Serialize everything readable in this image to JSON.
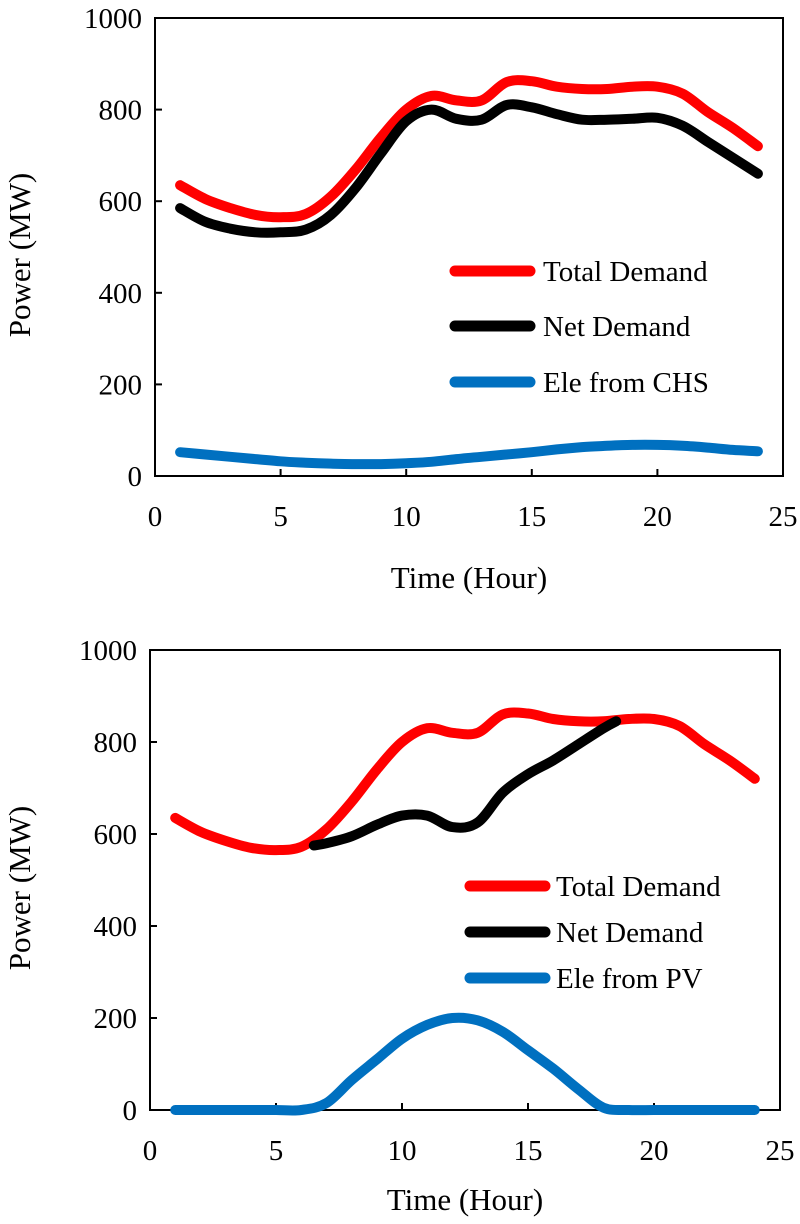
{
  "chart_data": [
    {
      "type": "line",
      "title": "",
      "xlabel": "Time (Hour)",
      "ylabel": "Power (MW)",
      "xlim": [
        0,
        25
      ],
      "ylim": [
        0,
        1000
      ],
      "xticks": [
        "0",
        "5",
        "10",
        "15",
        "20",
        "25"
      ],
      "yticks": [
        "0",
        "200",
        "400",
        "600",
        "800",
        "1000"
      ],
      "grid": false,
      "legend_position": "right",
      "series": [
        {
          "name": "Total Demand",
          "color": "#ff0000",
          "x": [
            1,
            2,
            3,
            4,
            5,
            6,
            7,
            8,
            9,
            10,
            11,
            12,
            13,
            14,
            15,
            16,
            17,
            18,
            19,
            20,
            21,
            22,
            23,
            24
          ],
          "y": [
            635,
            605,
            585,
            570,
            565,
            572,
            610,
            670,
            740,
            800,
            830,
            820,
            820,
            860,
            862,
            850,
            845,
            845,
            850,
            850,
            835,
            795,
            760,
            720
          ]
        },
        {
          "name": "Net Demand",
          "color": "#000000",
          "x": [
            1,
            2,
            3,
            4,
            5,
            6,
            7,
            8,
            9,
            10,
            11,
            12,
            13,
            14,
            15,
            16,
            17,
            18,
            19,
            20,
            21,
            22,
            23,
            24
          ],
          "y": [
            585,
            555,
            540,
            532,
            532,
            538,
            570,
            630,
            705,
            775,
            800,
            780,
            778,
            810,
            805,
            790,
            778,
            778,
            780,
            782,
            765,
            730,
            695,
            660
          ]
        },
        {
          "name": "Ele from CHS",
          "color": "#0070c0",
          "x": [
            1,
            2,
            3,
            4,
            5,
            6,
            7,
            8,
            9,
            10,
            11,
            12,
            13,
            14,
            15,
            16,
            17,
            18,
            19,
            20,
            21,
            22,
            23,
            24
          ],
          "y": [
            52,
            47,
            42,
            37,
            32,
            29,
            27,
            26,
            26,
            28,
            31,
            37,
            42,
            47,
            52,
            58,
            63,
            66,
            68,
            68,
            66,
            62,
            57,
            54
          ]
        }
      ]
    },
    {
      "type": "line",
      "title": "",
      "xlabel": "Time (Hour)",
      "ylabel": "Power (MW)",
      "xlim": [
        0,
        25
      ],
      "ylim": [
        0,
        1000
      ],
      "xticks": [
        "0",
        "5",
        "10",
        "15",
        "20",
        "25"
      ],
      "yticks": [
        "0",
        "200",
        "400",
        "600",
        "800",
        "1000"
      ],
      "grid": false,
      "legend_position": "right",
      "series": [
        {
          "name": "Total Demand",
          "color": "#ff0000",
          "x": [
            1,
            2,
            3,
            4,
            5,
            6,
            7,
            8,
            9,
            10,
            11,
            12,
            13,
            14,
            15,
            16,
            17,
            18,
            19,
            20,
            21,
            22,
            23,
            24
          ],
          "y": [
            635,
            605,
            585,
            570,
            565,
            572,
            610,
            670,
            740,
            800,
            830,
            820,
            820,
            860,
            862,
            850,
            845,
            845,
            850,
            850,
            835,
            795,
            760,
            720
          ]
        },
        {
          "name": "Net Demand",
          "color": "#000000",
          "x": [
            6.5,
            7,
            8,
            9,
            10,
            11,
            12,
            13,
            14,
            15,
            16,
            17,
            18,
            18.5
          ],
          "y": [
            575,
            580,
            595,
            620,
            640,
            640,
            615,
            625,
            690,
            730,
            760,
            795,
            830,
            845
          ]
        },
        {
          "name": "Ele from PV",
          "color": "#0070c0",
          "x": [
            1,
            2,
            3,
            4,
            5,
            6,
            7,
            8,
            9,
            10,
            11,
            12,
            13,
            14,
            15,
            16,
            17,
            18,
            19,
            20,
            21,
            22,
            23,
            24
          ],
          "y": [
            0,
            0,
            0,
            0,
            0,
            0,
            15,
            65,
            110,
            155,
            185,
            200,
            195,
            170,
            130,
            90,
            45,
            5,
            0,
            0,
            0,
            0,
            0,
            0
          ]
        }
      ]
    }
  ]
}
